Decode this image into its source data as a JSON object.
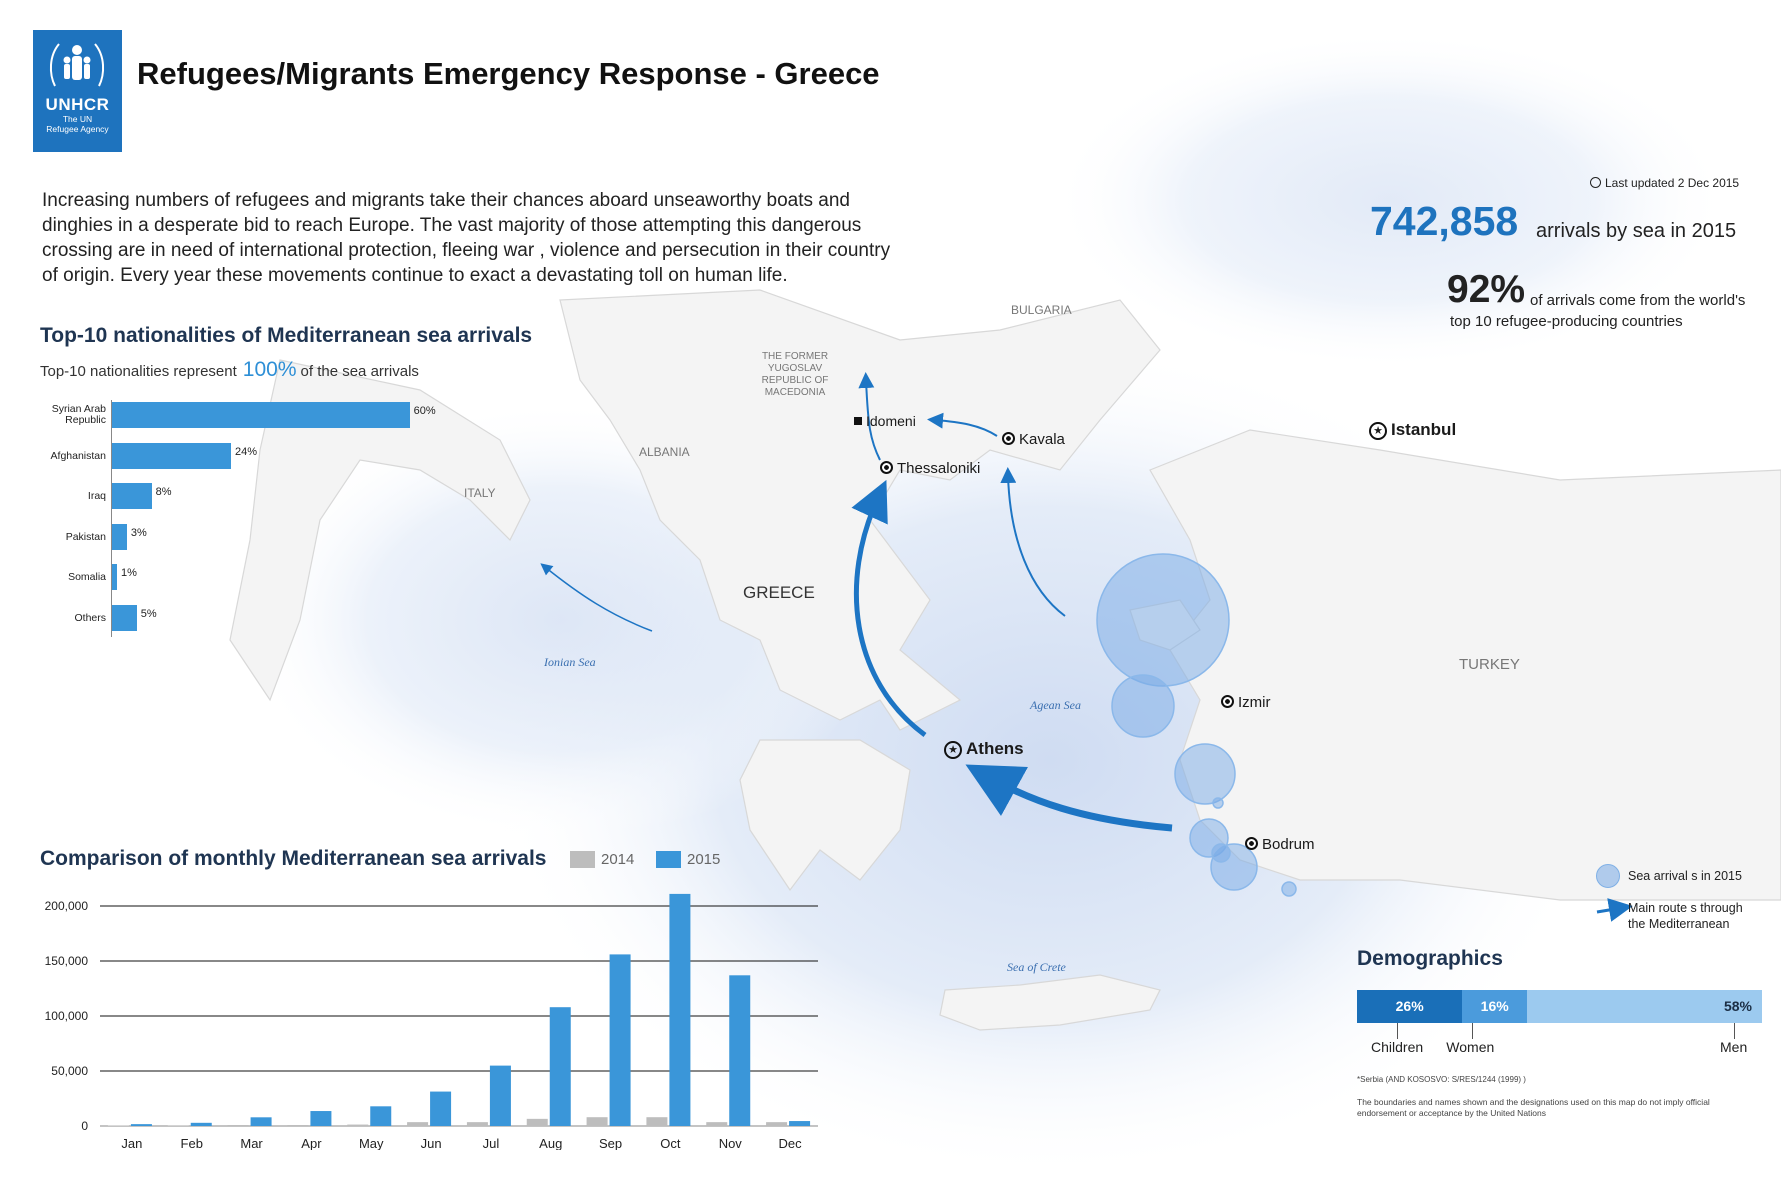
{
  "header": {
    "logo_name": "UNHCR",
    "logo_sub_line1": "The UN",
    "logo_sub_line2": "Refugee Agency",
    "title": "Refugees/Migrants Emergency Response - Greece"
  },
  "intro_text": "Increasing numbers of refugees and migrants take their chances aboard unseaworthy boats and dinghies in a desperate bid to reach Europe.   The vast majority of those attempting this dangerous crossing are in need of international protection, fleeing war  , violence and persecution in their country of origin. Every year these movements continue to exact a devastating toll on human life.",
  "last_updated_label": "Last updated  2 Dec 2015",
  "kpi": {
    "arrivals_value": "742,858",
    "arrivals_text": "arrivals by sea in 2015",
    "pct_value": "92%",
    "pct_text_line1": "of arrivals come from the world's",
    "pct_text_line2": "top 10 refugee-producing countries"
  },
  "map": {
    "countries": [
      "BULGARIA",
      "THE FORMER",
      "YUGOSLAV",
      "REPUBLIC OF",
      "MACEDONIA",
      "ALBANIA",
      "ITALY",
      "GREECE",
      "TURKEY"
    ],
    "seas": [
      "Ionian Sea",
      "Agean Sea",
      "Sea of Crete"
    ],
    "cities": [
      "Idomeni",
      "Kavala",
      "Thessaloniki",
      "Istanbul",
      "Izmir",
      "Athens",
      "Bodrum"
    ],
    "legend_circle": "Sea arrival s in  2015",
    "legend_route_line1": "Main route s through",
    "legend_route_line2": "the Mediterranean"
  },
  "chart_data": [
    {
      "type": "bar",
      "title": "Top-10 nationalities of Mediterranean sea arrivals",
      "subtitle_prefix": "Top-10 nationalities represent",
      "subtitle_value": "100%",
      "subtitle_suffix": "of the sea arrivals",
      "orientation": "horizontal",
      "categories": [
        "Syrian Arab Republic",
        "Afghanistan",
        "Iraq",
        "Pakistan",
        "Somalia",
        "Others"
      ],
      "values": [
        60,
        24,
        8,
        3,
        1,
        5
      ],
      "value_labels": [
        "60%",
        "24%",
        "8%",
        "3%",
        "1%",
        "5%"
      ],
      "color": "#3a96d9"
    },
    {
      "type": "bar",
      "title": "Comparison of monthly Mediterranean sea arrivals",
      "categories": [
        "Jan",
        "Feb",
        "Mar",
        "Apr",
        "May",
        "Jun",
        "Jul",
        "Aug",
        "Sep",
        "Oct",
        "Nov",
        "Dec"
      ],
      "series": [
        {
          "name": "2014",
          "color": "#bdbdbd",
          "values": [
            500,
            600,
            900,
            900,
            1300,
            3500,
            3500,
            6500,
            8000,
            8000,
            3500,
            3500
          ]
        },
        {
          "name": "2015",
          "color": "#3a96d9",
          "values": [
            1700,
            2900,
            7900,
            13600,
            17900,
            31300,
            54900,
            108000,
            156000,
            211000,
            137000,
            4500
          ]
        }
      ],
      "yticks": [
        "200,000",
        "150,000",
        "100,000",
        "50,000",
        "0"
      ],
      "ylim": [
        0,
        200000
      ],
      "grid": true
    }
  ],
  "demographics": {
    "title": "Demographics",
    "segments": [
      {
        "label": "Children",
        "value": 26,
        "text": "26%",
        "color": "#1a6fb8"
      },
      {
        "label": "Women",
        "value": 16,
        "text": "16%",
        "color": "#4b9bdc"
      },
      {
        "label": "Men",
        "value": 58,
        "text": "58%",
        "color": "#9ccaef"
      }
    ],
    "footnote1": "*Serbia (AND KOSOSVO:  S/RES/1244 (1999)  )",
    "footnote2": "The boundaries and names shown and the designations used on this map do not imply official endorsement or acceptance by the United Nations"
  }
}
